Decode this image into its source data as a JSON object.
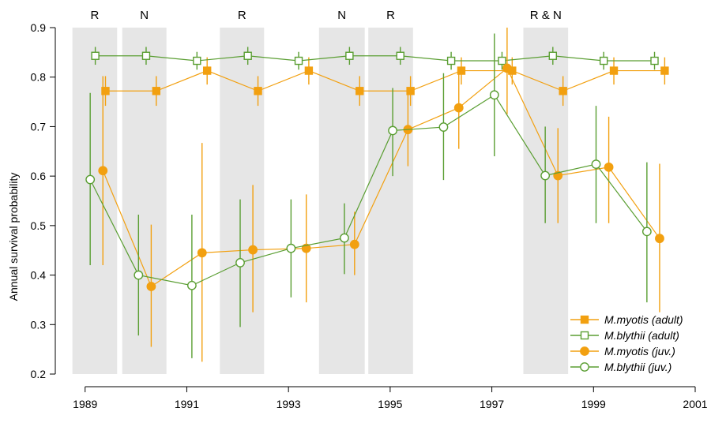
{
  "chart_data": {
    "type": "line",
    "ylabel": "Annual survival probability",
    "xlabel": "",
    "xlim": [
      1988.6,
      2001
    ],
    "ylim": [
      0.2,
      0.9
    ],
    "xticks": [
      1989,
      1991,
      1993,
      1995,
      1997,
      1999,
      2001
    ],
    "xtick_labels": [
      "1989",
      "1991",
      "1993",
      "1995",
      "1997",
      "1999",
      "2001"
    ],
    "yticks": [
      0.2,
      0.3,
      0.4,
      0.5,
      0.6,
      0.7,
      0.8,
      0.9
    ],
    "ytick_labels": [
      "0.2",
      "0.3",
      "0.4",
      "0.5",
      "0.6",
      "0.7",
      "0.8",
      "0.9"
    ],
    "grid": false,
    "legend_position": "bottom-right",
    "shaded_periods": [
      {
        "label": "R",
        "start": 1988.75,
        "end": 1989.63
      },
      {
        "label": "N",
        "start": 1989.73,
        "end": 1990.6
      },
      {
        "label": "R",
        "start": 1991.65,
        "end": 1992.52
      },
      {
        "label": "N",
        "start": 1993.6,
        "end": 1994.5
      },
      {
        "label": "R",
        "start": 1994.57,
        "end": 1995.45
      },
      {
        "label": "R & N",
        "start": 1997.62,
        "end": 1998.5
      }
    ],
    "series": [
      {
        "name": "M.myotis (adult)",
        "color": "#F2A010",
        "marker": "square-filled",
        "x": [
          1989.4,
          1990.4,
          1991.4,
          1992.4,
          1993.4,
          1994.4,
          1995.4,
          1996.4,
          1997.4,
          1998.4,
          1999.4,
          2000.4
        ],
        "y": [
          0.772,
          0.772,
          0.813,
          0.772,
          0.813,
          0.772,
          0.772,
          0.813,
          0.813,
          0.772,
          0.813,
          0.813
        ],
        "lower": [
          0.742,
          0.742,
          0.785,
          0.742,
          0.785,
          0.742,
          0.742,
          0.785,
          0.785,
          0.742,
          0.785,
          0.785
        ],
        "upper": [
          0.802,
          0.802,
          0.84,
          0.802,
          0.84,
          0.802,
          0.802,
          0.84,
          0.84,
          0.802,
          0.84,
          0.84
        ]
      },
      {
        "name": "M.blythii (adult)",
        "color": "#5A9E32",
        "marker": "square-open",
        "x": [
          1989.2,
          1990.2,
          1991.2,
          1992.2,
          1993.2,
          1994.2,
          1995.2,
          1996.2,
          1997.2,
          1998.2,
          1999.2,
          2000.2
        ],
        "y": [
          0.843,
          0.843,
          0.833,
          0.843,
          0.833,
          0.843,
          0.843,
          0.833,
          0.833,
          0.843,
          0.833,
          0.833
        ],
        "lower": [
          0.825,
          0.825,
          0.815,
          0.825,
          0.815,
          0.825,
          0.825,
          0.815,
          0.815,
          0.825,
          0.815,
          0.815
        ],
        "upper": [
          0.861,
          0.861,
          0.851,
          0.861,
          0.851,
          0.861,
          0.861,
          0.851,
          0.851,
          0.861,
          0.851,
          0.851
        ]
      },
      {
        "name": "M.myotis (juv.)",
        "color": "#F2A010",
        "marker": "circle-filled",
        "x": [
          1989.35,
          1990.3,
          1991.3,
          1992.3,
          1993.35,
          1994.3,
          1995.35,
          1996.35,
          1997.3,
          1998.3,
          1999.3,
          2000.3
        ],
        "y": [
          0.611,
          0.377,
          0.445,
          0.451,
          0.454,
          0.462,
          0.694,
          0.738,
          0.818,
          0.601,
          0.618,
          0.474
        ],
        "lower": [
          0.42,
          0.255,
          0.225,
          0.325,
          0.345,
          0.4,
          0.62,
          0.655,
          0.725,
          0.505,
          0.505,
          0.325
        ],
        "upper": [
          0.802,
          0.502,
          0.667,
          0.582,
          0.563,
          0.528,
          0.768,
          0.813,
          0.9,
          0.697,
          0.72,
          0.625
        ]
      },
      {
        "name": "M.blythii (juv.)",
        "color": "#5A9E32",
        "marker": "circle-open",
        "x": [
          1989.1,
          1990.05,
          1991.1,
          1992.05,
          1993.05,
          1994.1,
          1995.05,
          1996.05,
          1997.05,
          1998.05,
          1999.05,
          2000.05
        ],
        "y": [
          0.593,
          0.4,
          0.379,
          0.425,
          0.454,
          0.475,
          0.692,
          0.699,
          0.764,
          0.601,
          0.624,
          0.488
        ],
        "lower": [
          0.42,
          0.278,
          0.232,
          0.295,
          0.355,
          0.402,
          0.6,
          0.592,
          0.64,
          0.505,
          0.505,
          0.345
        ],
        "upper": [
          0.768,
          0.522,
          0.522,
          0.553,
          0.553,
          0.545,
          0.778,
          0.808,
          0.888,
          0.7,
          0.742,
          0.628
        ]
      }
    ]
  }
}
